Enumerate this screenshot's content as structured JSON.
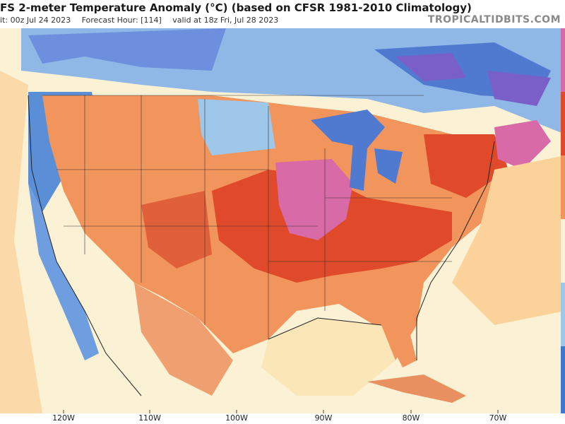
{
  "header": {
    "title": "FS 2-meter Temperature Anomaly (°C) (based on CFSR 1981-2010 Climatology)",
    "init": "it: 00z Jul 24 2023",
    "forecast_hour": "Forecast Hour: [114]",
    "valid": "valid at 18z Fri, Jul 28 2023",
    "brand": "TROPICALTIDBITS.COM"
  },
  "x_axis": {
    "ticks": [
      {
        "label": "120W",
        "lon": -120
      },
      {
        "label": "110W",
        "lon": -110
      },
      {
        "label": "100W",
        "lon": -100
      },
      {
        "label": "90W",
        "lon": -90
      },
      {
        "label": "80W",
        "lon": -80
      },
      {
        "label": "70W",
        "lon": -70
      }
    ]
  },
  "colors": {
    "strong_warm": "#e04a2a",
    "warm": "#f2955c",
    "mild_warm": "#fbd39a",
    "neutral": "#fbf1d4",
    "cool": "#9ec7ea",
    "cold": "#3f78cf",
    "very_cold": "#7a5fc8",
    "extreme_warm": "#d86aa8"
  }
}
